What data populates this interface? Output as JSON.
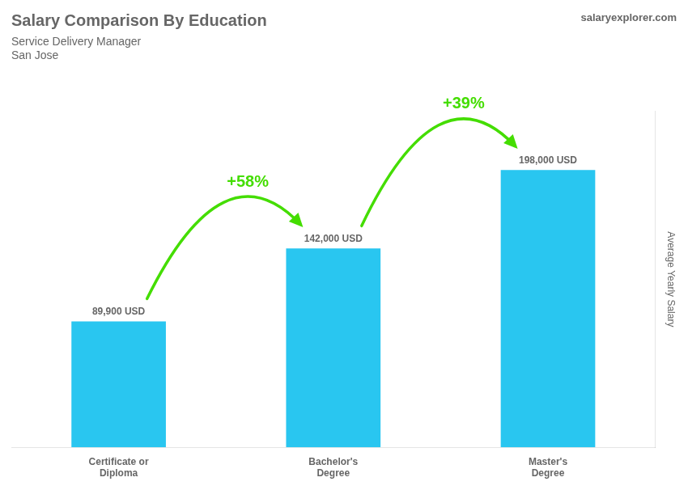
{
  "chart_data": {
    "type": "bar",
    "title": "Salary Comparison By Education",
    "subtitle": [
      "Service Delivery Manager",
      "San Jose"
    ],
    "brand": "salaryexplorer.com",
    "ylabel": "Average Yearly Salary",
    "categories": [
      "Certificate or\nDiploma",
      "Bachelor's\nDegree",
      "Master's\nDegree"
    ],
    "values": [
      89900,
      142000,
      198000
    ],
    "value_labels": [
      "89,900 USD",
      "142,000 USD",
      "198,000 USD"
    ],
    "data_labels": true,
    "color": "#29c6f0",
    "ylim": [
      0,
      240000
    ],
    "tick_labels": "x",
    "grid": false,
    "annotations": [
      {
        "text": "+58%",
        "color": "#44dd00"
      },
      {
        "text": "+39%",
        "color": "#44dd00"
      }
    ]
  }
}
